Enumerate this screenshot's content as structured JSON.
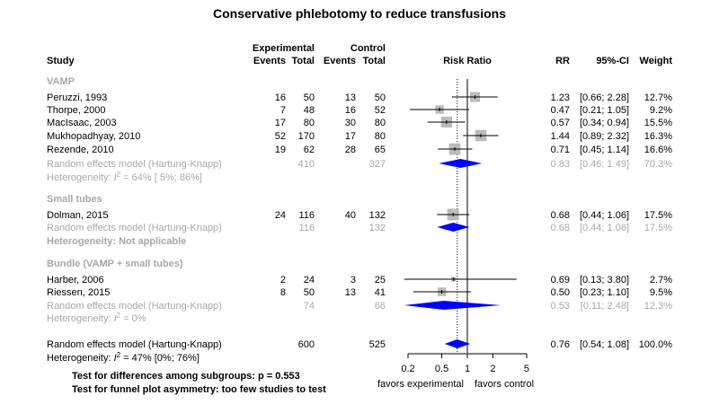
{
  "title": "Conservative phlebotomy to reduce transfusions",
  "headers": {
    "study": "Study",
    "experimental": "Experimental",
    "control": "Control",
    "events": "Events",
    "total": "Total",
    "risk_ratio": "Risk Ratio",
    "rr": "RR",
    "ci": "95%-CI",
    "weight": "Weight"
  },
  "colors": {
    "diamond": "#0000ff",
    "study_box": "#bbbbbb",
    "grey_text": "#a8a8a8",
    "text": "#000000"
  },
  "chart_data": {
    "type": "forest",
    "x_scale": "log",
    "xlim": [
      0.2,
      5
    ],
    "x_ticks": [
      "0.2",
      "0.5",
      "1",
      "2",
      "5"
    ],
    "x_tick_values": [
      0.2,
      0.5,
      1,
      2,
      5
    ],
    "xlabel_left": "favors experimental",
    "xlabel_right": "favors control",
    "null_line": 1,
    "overall_line": 0.76,
    "subgroups": [
      {
        "label": "VAMP",
        "studies": [
          {
            "name": "Peruzzi, 1993",
            "e_events": "16",
            "e_total": "50",
            "c_events": "13",
            "c_total": "50",
            "rr": 1.23,
            "lo": 0.66,
            "hi": 2.28,
            "rr_text": "1.23",
            "ci_text": "[0.66; 2.28]",
            "weight_text": "12.7%"
          },
          {
            "name": "Thorpe, 2000",
            "e_events": "7",
            "e_total": "48",
            "c_events": "16",
            "c_total": "52",
            "rr": 0.47,
            "lo": 0.21,
            "hi": 1.05,
            "rr_text": "0.47",
            "ci_text": "[0.21; 1.05]",
            "weight_text": "9.2%"
          },
          {
            "name": "MacIsaac, 2003",
            "e_events": "17",
            "e_total": "80",
            "c_events": "30",
            "c_total": "80",
            "rr": 0.57,
            "lo": 0.34,
            "hi": 0.94,
            "rr_text": "0.57",
            "ci_text": "[0.34; 0.94]",
            "weight_text": "15.5%"
          },
          {
            "name": "Mukhopadhyay, 2010",
            "e_events": "52",
            "e_total": "170",
            "c_events": "17",
            "c_total": "80",
            "rr": 1.44,
            "lo": 0.89,
            "hi": 2.32,
            "rr_text": "1.44",
            "ci_text": "[0.89; 2.32]",
            "weight_text": "16.3%"
          },
          {
            "name": "Rezende, 2010",
            "e_events": "19",
            "e_total": "62",
            "c_events": "28",
            "c_total": "65",
            "rr": 0.71,
            "lo": 0.45,
            "hi": 1.14,
            "rr_text": "0.71",
            "ci_text": "[0.45; 1.14]",
            "weight_text": "16.6%"
          }
        ],
        "pooled": {
          "label": "Random effects model  (Hartung-Knapp)",
          "e_total": "410",
          "c_total": "327",
          "rr": 0.83,
          "lo": 0.46,
          "hi": 1.49,
          "rr_text": "0.83",
          "ci_text": "[0.46; 1.49]",
          "weight_text": "70.3%"
        },
        "heterogeneity": {
          "prefix": "Heterogeneity: ",
          "i2_symbol": "I",
          "sup": "2",
          "rest": " = 64% [ 5%; 86%]"
        }
      },
      {
        "label": "Small tubes",
        "studies": [
          {
            "name": "Dolman, 2015",
            "e_events": "24",
            "e_total": "116",
            "c_events": "40",
            "c_total": "132",
            "rr": 0.68,
            "lo": 0.44,
            "hi": 1.06,
            "rr_text": "0.68",
            "ci_text": "[0.44; 1.06]",
            "weight_text": "17.5%"
          }
        ],
        "pooled": {
          "label": "Random effects model  (Hartung-Knapp)",
          "e_total": "116",
          "c_total": "132",
          "rr": 0.68,
          "lo": 0.44,
          "hi": 1.06,
          "rr_text": "0.68",
          "ci_text": "[0.44; 1.06]",
          "weight_text": "17.5%"
        },
        "heterogeneity_text": "Heterogeneity: Not applicable"
      },
      {
        "label": "Bundle (VAMP + small tubes)",
        "studies": [
          {
            "name": "Harber, 2006",
            "e_events": "2",
            "e_total": "24",
            "c_events": "3",
            "c_total": "25",
            "rr": 0.69,
            "lo": 0.13,
            "hi": 3.8,
            "rr_text": "0.69",
            "ci_text": "[0.13; 3.80]",
            "weight_text": "2.7%"
          },
          {
            "name": "Riessen, 2015",
            "e_events": "8",
            "e_total": "50",
            "c_events": "13",
            "c_total": "41",
            "rr": 0.5,
            "lo": 0.23,
            "hi": 1.1,
            "rr_text": "0.50",
            "ci_text": "[0.23; 1.10]",
            "weight_text": "9.5%"
          }
        ],
        "pooled": {
          "label": "Random effects model  (Hartung-Knapp)",
          "e_total": "74",
          "c_total": "66",
          "rr": 0.53,
          "lo": 0.11,
          "hi": 2.48,
          "rr_text": "0.53",
          "ci_text": "[0.11; 2.48]",
          "weight_text": "12.3%"
        },
        "heterogeneity": {
          "prefix": "Heterogeneity: ",
          "i2_symbol": "I",
          "sup": "2",
          "rest": " = 0%"
        }
      }
    ],
    "overall": {
      "label": "Random effects model  (Hartung-Knapp)",
      "e_total": "600",
      "c_total": "525",
      "rr": 0.76,
      "lo": 0.54,
      "hi": 1.08,
      "rr_text": "0.76",
      "ci_text": "[0.54; 1.08]",
      "weight_text": "100.0%",
      "heterogeneity": {
        "prefix": "Heterogeneity: ",
        "i2_symbol": "I",
        "sup": "2",
        "rest": " = 47% [0%; 76%]"
      }
    },
    "tests": [
      "Test for differences among subgroups: p = 0.553",
      "Test for funnel plot asymmetry: too few studies to test"
    ]
  }
}
